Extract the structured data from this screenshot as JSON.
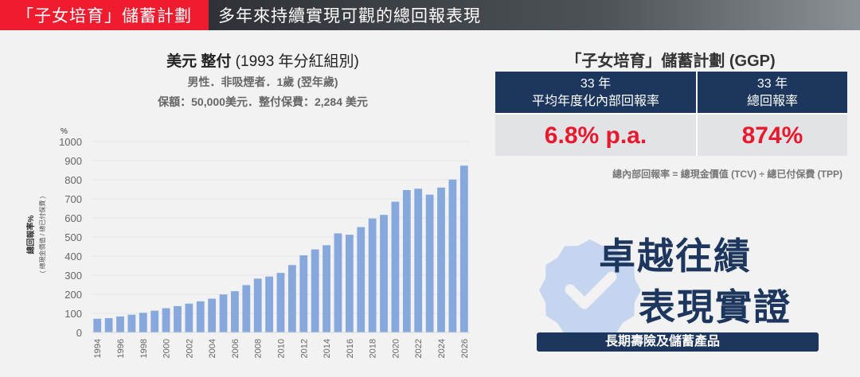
{
  "header": {
    "tag": "「子女培育」儲蓄計劃",
    "title": "多年來持續實現可觀的總回報表現"
  },
  "chart_title": {
    "bold": "美元 整付",
    "rest": " (1993 年分紅組別)"
  },
  "chart_sub1": "男性．非吸煙者．1歲 (翌年歲)",
  "chart_sub2": "保額：50,000美元．整付保費：2,284 美元",
  "chart_data": {
    "type": "bar",
    "ylabel": "總回報率%",
    "ylabel_sub": "( 總現金價值 / 總已付保費 )",
    "yunit": "%",
    "ylim": [
      0,
      1000
    ],
    "yticks": [
      0,
      100,
      200,
      300,
      400,
      500,
      600,
      700,
      800,
      900,
      1000
    ],
    "grid": true,
    "color": "#86a8dc",
    "categories": [
      1994,
      1995,
      1996,
      1997,
      1998,
      1999,
      2000,
      2001,
      2002,
      2003,
      2004,
      2005,
      2006,
      2007,
      2008,
      2009,
      2010,
      2011,
      2012,
      2013,
      2014,
      2015,
      2016,
      2017,
      2018,
      2019,
      2020,
      2021,
      2022,
      2023,
      2024,
      2025,
      2026
    ],
    "xtick_labels": [
      "1994",
      "1996",
      "1998",
      "2000",
      "2002",
      "2004",
      "2006",
      "2008",
      "2010",
      "2012",
      "2014",
      "2016",
      "2018",
      "2020",
      "2022",
      "2024",
      "2026"
    ],
    "values": [
      72,
      75,
      84,
      93,
      103,
      114,
      127,
      138,
      151,
      163,
      177,
      199,
      216,
      248,
      282,
      293,
      312,
      353,
      404,
      435,
      457,
      519,
      512,
      552,
      597,
      616,
      685,
      746,
      753,
      722,
      759,
      801,
      874
    ]
  },
  "right": {
    "title": "「子女培育」儲蓄計劃 (GGP)",
    "col1": {
      "years": "33 年",
      "label": "平均年度化內部回報率",
      "value": "6.8% p.a."
    },
    "col2": {
      "years": "33 年",
      "label": "總回報率",
      "value": "874%"
    },
    "formula": "總內部回報率 = 總現金價值 (TCV) ÷ 總已付保費 (TPP)"
  },
  "badge": {
    "line1": "卓越往績",
    "line2": "表現實證",
    "pill": "長期壽險及儲蓄產品",
    "icon": "verified-check-badge-icon"
  }
}
